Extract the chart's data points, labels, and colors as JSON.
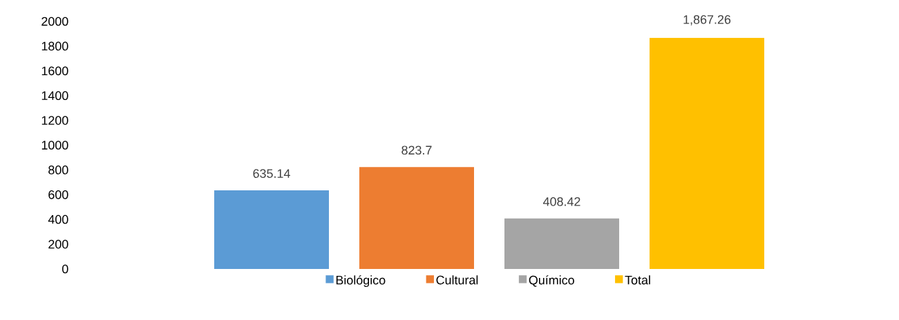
{
  "chart_data": {
    "type": "bar",
    "categories": [
      null
    ],
    "series": [
      {
        "name": "Biológico",
        "color": "#5b9bd5",
        "values": [
          635.14
        ],
        "value_labels": [
          "635.14"
        ]
      },
      {
        "name": "Cultural",
        "color": "#ed7d31",
        "values": [
          823.7
        ],
        "value_labels": [
          "823.7"
        ]
      },
      {
        "name": "Químico",
        "color": "#a5a5a5",
        "values": [
          408.42
        ],
        "value_labels": [
          "408.42"
        ]
      },
      {
        "name": "Total",
        "color": "#ffc000",
        "values": [
          1867.26
        ],
        "value_labels": [
          "1,867.26"
        ]
      }
    ],
    "ylim": [
      0,
      2000
    ],
    "yticks": [
      0,
      200,
      400,
      600,
      800,
      1000,
      1200,
      1400,
      1600,
      1800,
      2000
    ],
    "legend": "bottom"
  }
}
